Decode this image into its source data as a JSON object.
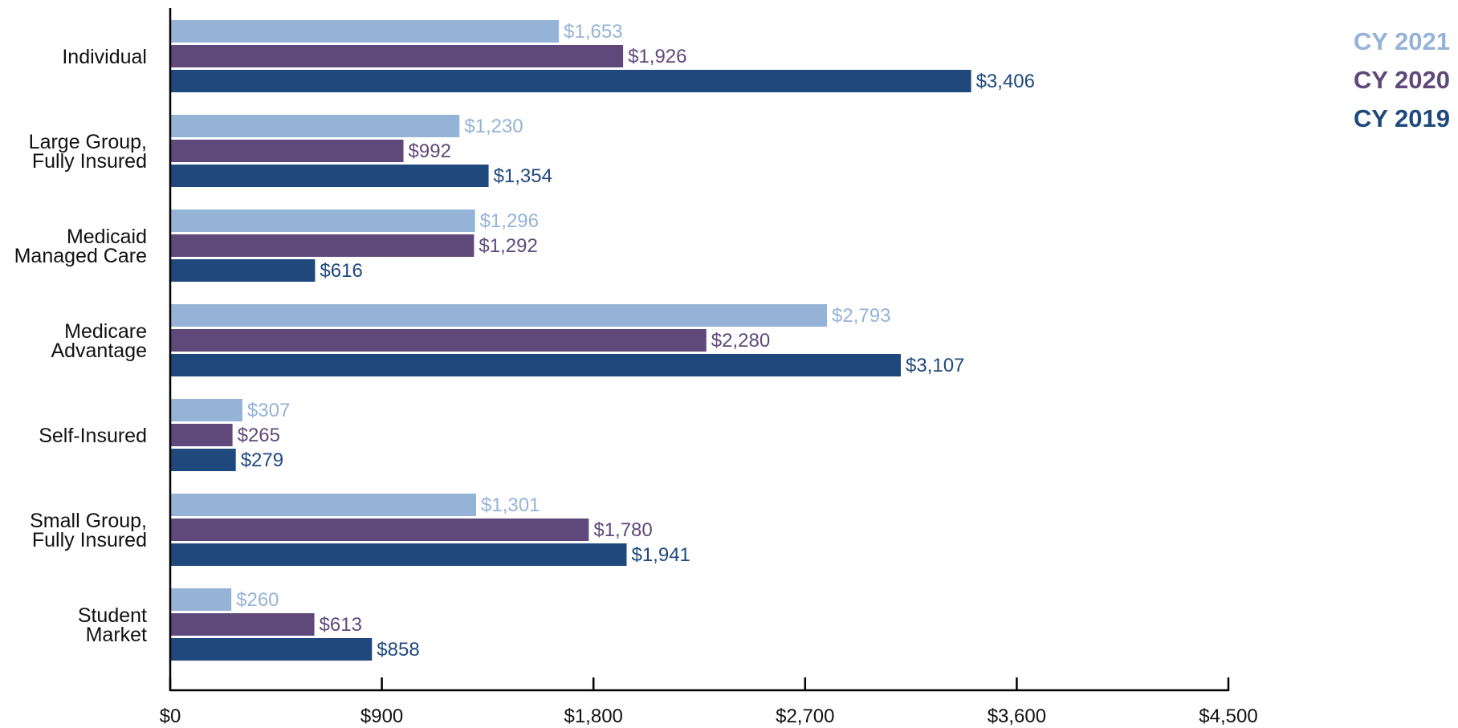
{
  "chart_data": {
    "type": "bar",
    "orientation": "horizontal",
    "title": "",
    "xlabel": "",
    "ylabel": "",
    "categories": [
      [
        "Individual"
      ],
      [
        "Large Group,",
        "Fully Insured"
      ],
      [
        "Medicaid",
        "Managed Care"
      ],
      [
        "Medicare",
        "Advantage"
      ],
      [
        "Self-Insured"
      ],
      [
        "Small Group,",
        "Fully Insured"
      ],
      [
        "Student",
        "Market"
      ]
    ],
    "series": [
      {
        "name": "CY 2021",
        "color": "#95b3d7",
        "values": [
          1653,
          1230,
          1296,
          2793,
          307,
          1301,
          260
        ],
        "labels": [
          "$1,653",
          "$1,230",
          "$1,296",
          "$2,793",
          "$307",
          "$1,301",
          "$260"
        ]
      },
      {
        "name": "CY 2020",
        "color": "#5f497a",
        "values": [
          1926,
          992,
          1292,
          2280,
          265,
          1780,
          613
        ],
        "labels": [
          "$1,926",
          "$992",
          "$1,292",
          "$2,280",
          "$265",
          "$1,780",
          "$613"
        ]
      },
      {
        "name": "CY 2019",
        "color": "#1f497d",
        "values": [
          3406,
          1354,
          616,
          3107,
          279,
          1941,
          858
        ],
        "labels": [
          "$3,406",
          "$1,354",
          "$616",
          "$3,107",
          "$279",
          "$1,941",
          "$858"
        ]
      }
    ],
    "xlim": [
      0,
      4500
    ],
    "xticks": [
      0,
      900,
      1800,
      2700,
      3600,
      4500
    ],
    "xtick_labels": [
      "$0",
      "$900",
      "$1,800",
      "$2,700",
      "$3,600",
      "$4,500"
    ],
    "grid": false,
    "legend_position": "top-right"
  }
}
